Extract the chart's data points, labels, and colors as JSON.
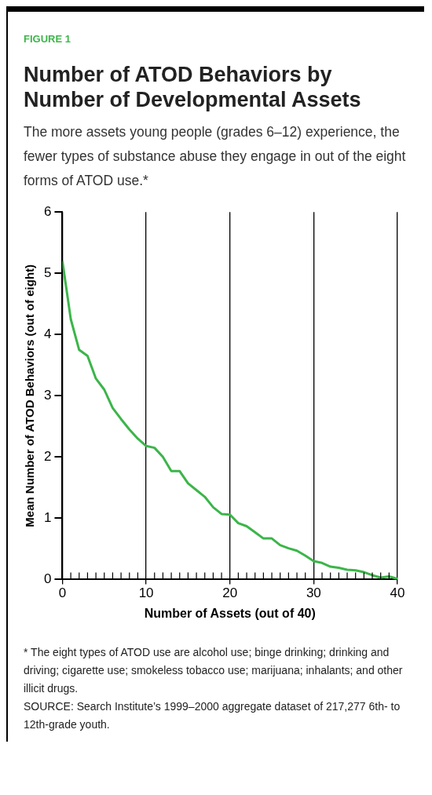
{
  "chart_data": {
    "type": "line",
    "title": "Number of ATOD Behaviors by Number of Developmental Assets",
    "subtitle": "The more assets young people (grades 6–12) experience, the fewer types of substance abuse they engage in out of the eight forms of ATOD use.*",
    "xlabel": "Number of Assets (out of 40)",
    "ylabel": "Mean Number of ATOD Behaviors (out of eight)",
    "annotations": [
      "FIGURE 1",
      "* The eight types of ATOD use are alcohol use; binge drinking; drinking and driving; cigarette use; smokeless tobacco use; marijuana; inhalants; and other illicit drugs.",
      "SOURCE: Search Institute’s 1999–2000 aggregate dataset of 217,277 6th- to 12th-grade youth."
    ],
    "x": [
      0,
      1,
      2,
      3,
      4,
      5,
      6,
      7,
      8,
      9,
      10,
      11,
      12,
      13,
      14,
      15,
      16,
      17,
      18,
      19,
      20,
      21,
      22,
      23,
      24,
      25,
      26,
      27,
      28,
      29,
      30,
      31,
      32,
      33,
      34,
      35,
      36,
      37,
      38,
      39,
      40
    ],
    "series": [
      {
        "color": "#3cb54a",
        "values": [
          5.2,
          4.25,
          3.75,
          3.65,
          3.28,
          3.1,
          2.8,
          2.62,
          2.45,
          2.3,
          2.18,
          2.15,
          2.0,
          1.77,
          1.77,
          1.57,
          1.46,
          1.35,
          1.18,
          1.07,
          1.06,
          0.92,
          0.87,
          0.77,
          0.67,
          0.67,
          0.56,
          0.51,
          0.47,
          0.39,
          0.3,
          0.27,
          0.21,
          0.19,
          0.16,
          0.15,
          0.12,
          0.07,
          0.03,
          0.05,
          0.01
        ]
      }
    ],
    "xlim": [
      0,
      40
    ],
    "xticks": [
      0,
      {
        "value": 1,
        "label": null
      },
      {
        "value": 2,
        "label": null
      },
      {
        "value": 3,
        "label": null
      },
      {
        "value": 4,
        "label": null
      },
      {
        "value": 5,
        "label": null
      },
      {
        "value": 6,
        "label": null
      },
      {
        "value": 7,
        "label": null
      },
      {
        "value": 8,
        "label": null
      },
      {
        "value": 9,
        "label": null
      },
      10,
      {
        "value": 11,
        "label": null
      },
      {
        "value": 12,
        "label": null
      },
      {
        "value": 13,
        "label": null
      },
      {
        "value": 14,
        "label": null
      },
      {
        "value": 15,
        "label": null
      },
      {
        "value": 16,
        "label": null
      },
      {
        "value": 17,
        "label": null
      },
      {
        "value": 18,
        "label": null
      },
      {
        "value": 19,
        "label": null
      },
      20,
      {
        "value": 21,
        "label": null
      },
      {
        "value": 22,
        "label": null
      },
      {
        "value": 23,
        "label": null
      },
      {
        "value": 24,
        "label": null
      },
      {
        "value": 25,
        "label": null
      },
      {
        "value": 26,
        "label": null
      },
      {
        "value": 27,
        "label": null
      },
      {
        "value": 28,
        "label": null
      },
      {
        "value": 29,
        "label": null
      },
      30,
      {
        "value": 31,
        "label": null
      },
      {
        "value": 32,
        "label": null
      },
      {
        "value": 33,
        "label": null
      },
      {
        "value": 34,
        "label": null
      },
      {
        "value": 35,
        "label": null
      },
      {
        "value": 36,
        "label": null
      },
      {
        "value": 37,
        "label": null
      },
      {
        "value": 38,
        "label": null
      },
      {
        "value": 39,
        "label": null
      },
      40
    ],
    "ylim": [
      0,
      6
    ],
    "yticks": [
      0,
      1,
      2,
      3,
      4,
      5,
      6
    ],
    "grid": "x",
    "legend": false,
    "marker": "none",
    "line_style": "solid"
  }
}
